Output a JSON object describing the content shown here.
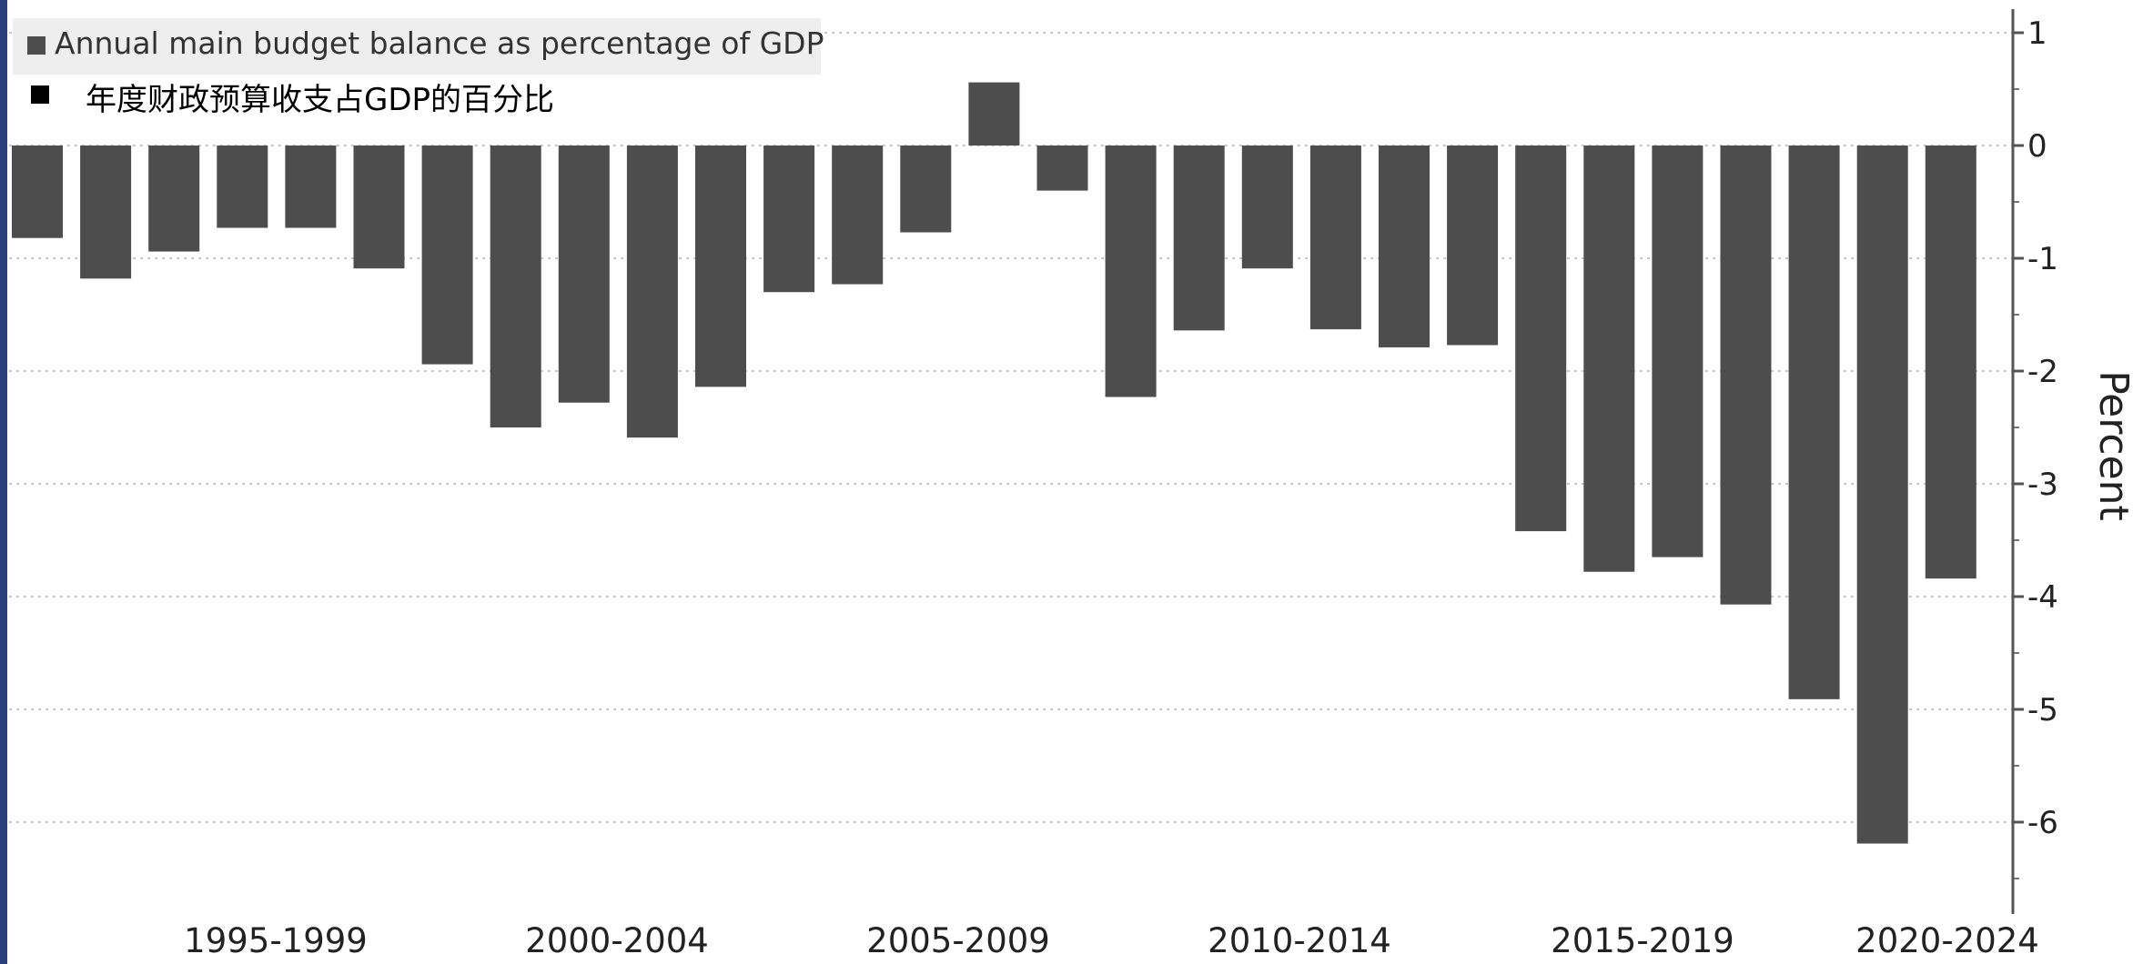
{
  "chart_data": {
    "type": "bar",
    "legend": [
      "Annual main budget balance as percentage of GDP",
      "年度财政预算收支占GDP的百分比"
    ],
    "legend_placement": "top-left",
    "title": "",
    "xlabel": "",
    "ylabel": "Percent",
    "y_axis_side": "right",
    "ylim": [
      -6.8,
      1.1
    ],
    "yticks": [
      1,
      0,
      -1,
      -2,
      -3,
      -4,
      -5,
      -6
    ],
    "ytick_labels": [
      "1",
      "0",
      "-1",
      "-2",
      "-3",
      "-4",
      "-5",
      "-6"
    ],
    "grid": true,
    "category_labels": [
      "1995-1999",
      "2000-2004",
      "2005-2009",
      "2010-2014",
      "2015-2019",
      "2020-2024"
    ],
    "series": [
      {
        "values": [
          -0.82,
          -1.18,
          -0.94,
          -0.73,
          -0.73,
          -1.09,
          -1.94,
          -2.5,
          -2.28,
          -2.59,
          -2.14,
          -1.3,
          -1.23,
          -0.77,
          0.56,
          -0.4,
          -2.23,
          -1.64,
          -1.09,
          -1.63,
          -1.79,
          -1.77,
          -3.42,
          -3.78,
          -3.65,
          -4.07,
          -4.91,
          -6.19,
          -3.84
        ],
        "color": "#4d4d4d"
      }
    ]
  }
}
